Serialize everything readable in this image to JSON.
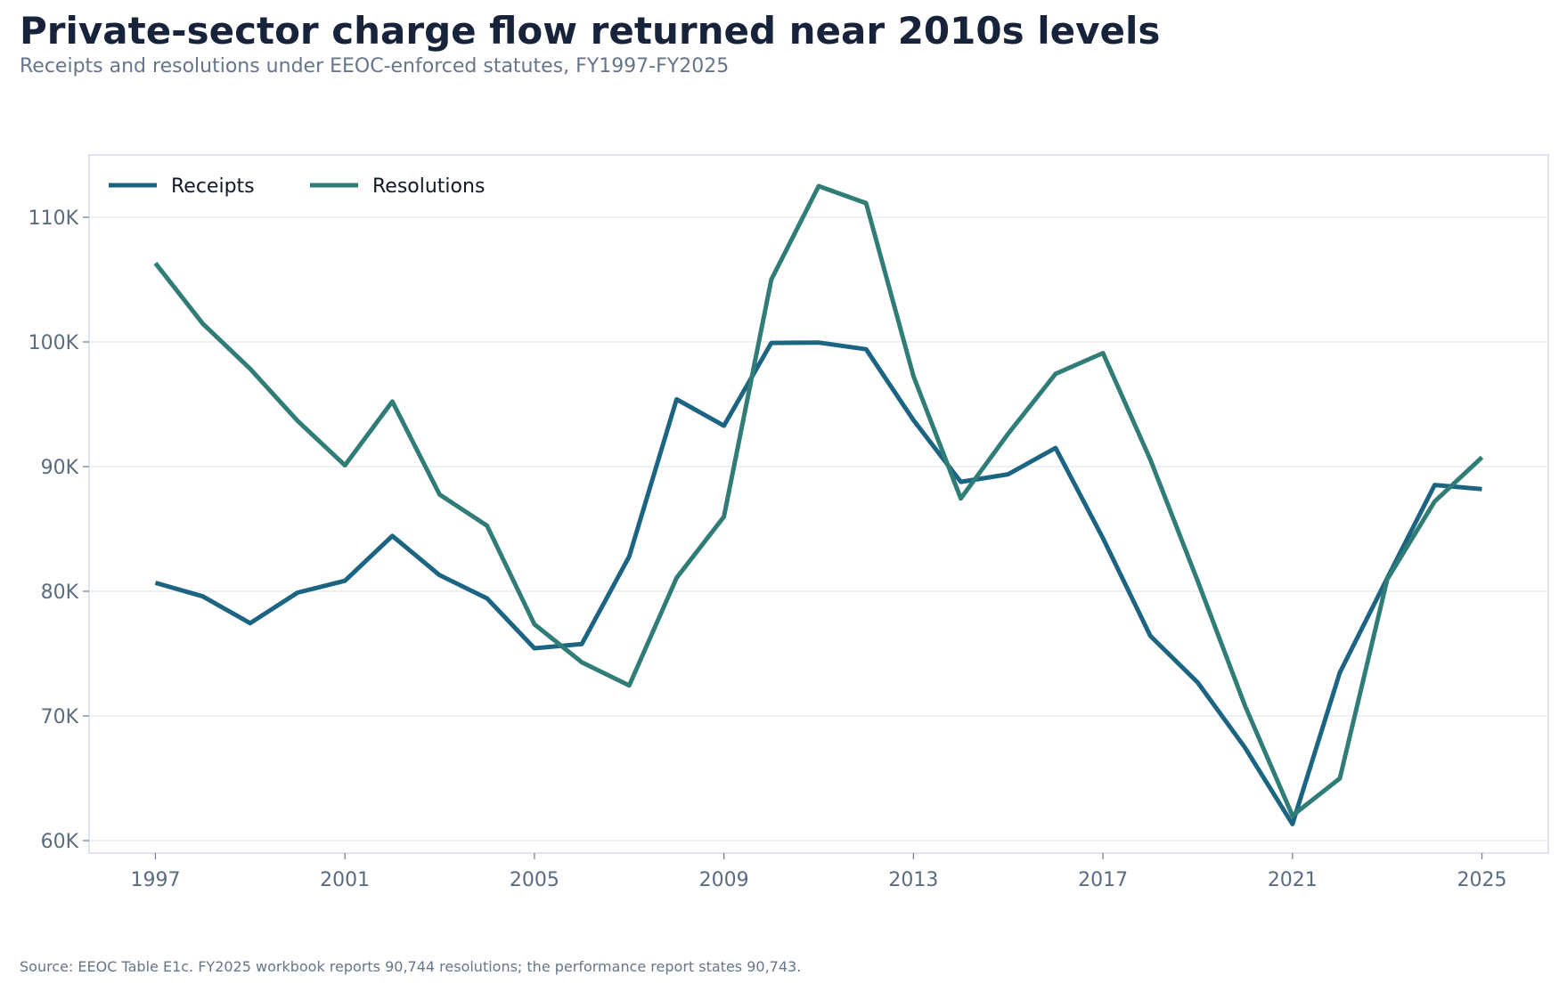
{
  "chart_data": {
    "type": "line",
    "title": "Private-sector charge flow returned near 2010s levels",
    "subtitle": "Receipts and resolutions under EEOC-enforced statutes, FY1997-FY2025",
    "source": "Source: EEOC Table E1c. FY2025 workbook reports 90,744 resolutions; the performance report states 90,743.",
    "xlabel": "",
    "ylabel": "",
    "x": [
      1997,
      1998,
      1999,
      2000,
      2001,
      2002,
      2003,
      2004,
      2005,
      2006,
      2007,
      2008,
      2009,
      2010,
      2011,
      2012,
      2013,
      2014,
      2015,
      2016,
      2017,
      2018,
      2019,
      2020,
      2021,
      2022,
      2023,
      2024,
      2025
    ],
    "xlim": [
      1995.6,
      2026.4
    ],
    "ylim": [
      59000,
      115000
    ],
    "x_ticks": [
      1997,
      2001,
      2005,
      2009,
      2013,
      2017,
      2021,
      2025
    ],
    "x_tick_labels": [
      "1997",
      "2001",
      "2005",
      "2009",
      "2013",
      "2017",
      "2021",
      "2025"
    ],
    "y_ticks": [
      60000,
      70000,
      80000,
      90000,
      100000,
      110000
    ],
    "y_tick_labels": [
      "60K",
      "70K",
      "80K",
      "90K",
      "100K",
      "110K"
    ],
    "grid": "horizontal",
    "legend_position": "top-left",
    "series": [
      {
        "name": "Receipts",
        "color": "#1b6482",
        "values": [
          80680,
          79591,
          77444,
          79896,
          80840,
          84442,
          81293,
          79432,
          75428,
          75768,
          82792,
          95402,
          93277,
          99922,
          99947,
          99412,
          93727,
          88778,
          89385,
          91503,
          84254,
          76418,
          72675,
          67448,
          61331,
          73485,
          81055,
          88531,
          88200
        ]
      },
      {
        "name": "Resolutions",
        "color": "#2f7d76",
        "values": [
          106312,
          101470,
          97846,
          93672,
          90106,
          95222,
          87755,
          85259,
          77352,
          74308,
          72442,
          81081,
          85980,
          104999,
          112499,
          111139,
          97252,
          87442,
          92641,
          97443,
          99109,
          90558,
          80806,
          70804,
          62009,
          64995,
          80956,
          87201,
          90744
        ]
      }
    ]
  }
}
